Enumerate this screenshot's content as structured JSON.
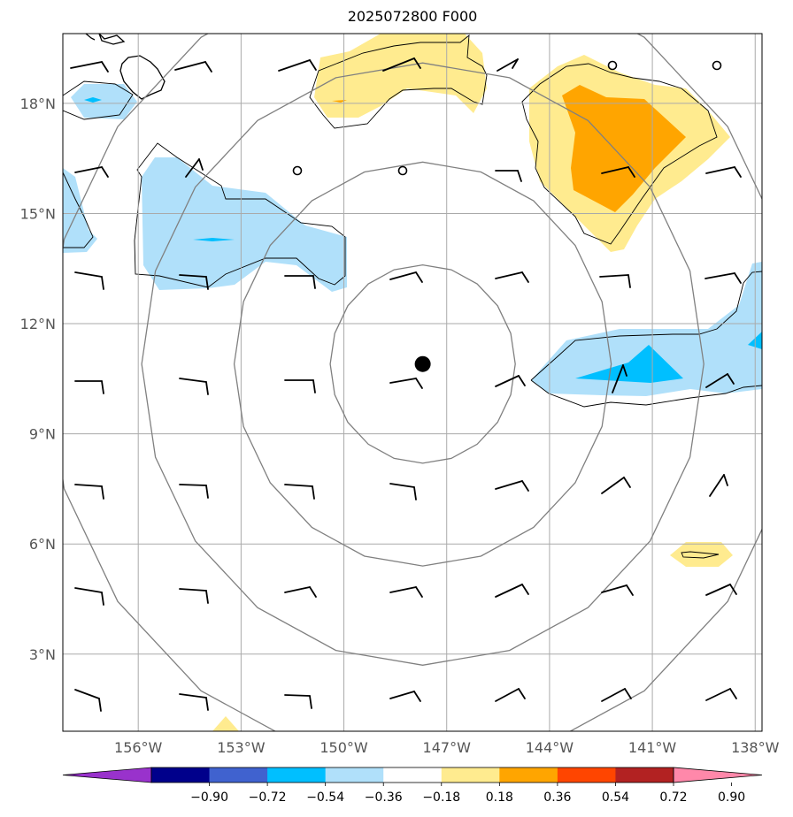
{
  "title": "2025072800 F000",
  "map": {
    "lon_range": [
      -158.2,
      -137.8
    ],
    "lat_range": [
      0.9,
      19.9
    ],
    "lat_ticks": [
      {
        "value": 3,
        "label": "3°N"
      },
      {
        "value": 6,
        "label": "6°N"
      },
      {
        "value": 9,
        "label": "9°N"
      },
      {
        "value": 12,
        "label": "12°N"
      },
      {
        "value": 15,
        "label": "15°N"
      },
      {
        "value": 18,
        "label": "18°N"
      }
    ],
    "lon_ticks": [
      {
        "value": -156,
        "label": "156°W"
      },
      {
        "value": -153,
        "label": "153°W"
      },
      {
        "value": -150,
        "label": "150°W"
      },
      {
        "value": -147,
        "label": "147°W"
      },
      {
        "value": -144,
        "label": "144°W"
      },
      {
        "value": -141,
        "label": "141°W"
      },
      {
        "value": -138,
        "label": "138°W"
      }
    ],
    "center_marker": {
      "lon": -147.7,
      "lat": 10.9
    },
    "range_rings_deg": [
      2.7,
      5.5,
      8.2,
      11.0
    ],
    "grid": true
  },
  "colorbar": {
    "colors": [
      "#9932cc",
      "#00008b",
      "#4062cf",
      "#00bfff",
      "#b0e0fa",
      "#ffffff",
      "#ffeb8f",
      "#ffa500",
      "#ff4500",
      "#b22222",
      "#ff88aa"
    ],
    "labels": [
      "−0.90",
      "−0.72",
      "−0.54",
      "−0.36",
      "−0.18",
      "0.18",
      "0.36",
      "0.54",
      "0.72",
      "0.90"
    ]
  }
}
